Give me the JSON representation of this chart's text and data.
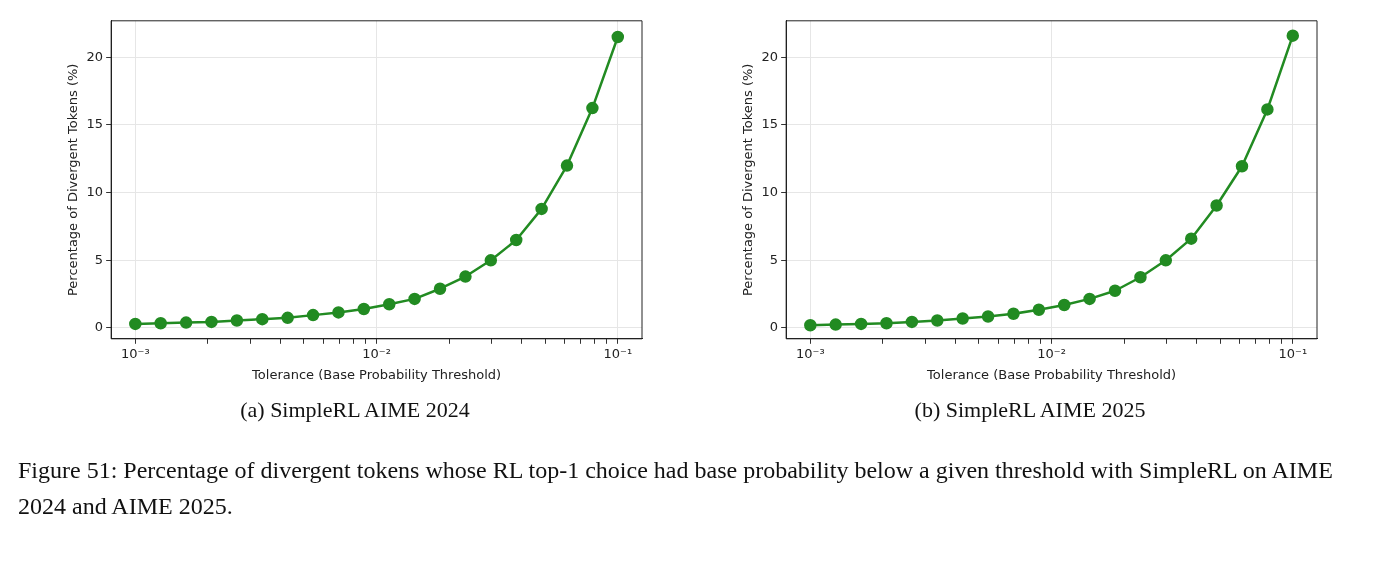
{
  "chart_data": [
    {
      "type": "line",
      "title": "(a) SimpleRL AIME 2024",
      "xlabel": "Tolerance (Base Probability Threshold)",
      "ylabel": "Percentage of Divergent Tokens (%)",
      "log": "x",
      "grid": true,
      "marker": "circle",
      "line_style": "solid",
      "legend": false,
      "x": [
        0.001,
        0.001274,
        0.001624,
        0.002069,
        0.002637,
        0.00336,
        0.004281,
        0.005456,
        0.006952,
        0.008859,
        0.01129,
        0.01438,
        0.01833,
        0.02336,
        0.02976,
        0.03793,
        0.04833,
        0.06158,
        0.07848,
        0.1
      ],
      "series": [
        {
          "color": "#228b22",
          "values": [
            0.3,
            0.35,
            0.4,
            0.45,
            0.55,
            0.65,
            0.75,
            0.95,
            1.15,
            1.4,
            1.75,
            2.15,
            2.9,
            3.8,
            5.0,
            6.5,
            8.8,
            12.0,
            16.25,
            21.5
          ]
        }
      ],
      "xlim": [
        0.000794,
        0.126
      ],
      "ylim": [
        -0.8,
        22.7
      ],
      "yticks": [
        0,
        5,
        10,
        15,
        20
      ],
      "xticks": [
        {
          "value": 0.001,
          "label": "10⁻³"
        },
        {
          "value": 0.002,
          "label": null
        },
        {
          "value": 0.003,
          "label": null
        },
        {
          "value": 0.004,
          "label": null
        },
        {
          "value": 0.005,
          "label": null
        },
        {
          "value": 0.006,
          "label": null
        },
        {
          "value": 0.007,
          "label": null
        },
        {
          "value": 0.008,
          "label": null
        },
        {
          "value": 0.009,
          "label": null
        },
        {
          "value": 0.01,
          "label": "10⁻²"
        },
        {
          "value": 0.02,
          "label": null
        },
        {
          "value": 0.03,
          "label": null
        },
        {
          "value": 0.04,
          "label": null
        },
        {
          "value": 0.05,
          "label": null
        },
        {
          "value": 0.06,
          "label": null
        },
        {
          "value": 0.07,
          "label": null
        },
        {
          "value": 0.08,
          "label": null
        },
        {
          "value": 0.09,
          "label": null
        },
        {
          "value": 0.1,
          "label": "10⁻¹"
        }
      ],
      "annotations": [
        "Figure 51: Percentage of divergent tokens whose RL top-1 choice had base probability below a given threshold with SimpleRL on AIME 2024 and AIME 2025."
      ]
    },
    {
      "type": "line",
      "title": "(b) SimpleRL AIME 2025",
      "xlabel": "Tolerance (Base Probability Threshold)",
      "ylabel": "Percentage of Divergent Tokens (%)",
      "log": "x",
      "grid": true,
      "marker": "circle",
      "line_style": "solid",
      "legend": false,
      "x": [
        0.001,
        0.001274,
        0.001624,
        0.002069,
        0.002637,
        0.00336,
        0.004281,
        0.005456,
        0.006952,
        0.008859,
        0.01129,
        0.01438,
        0.01833,
        0.02336,
        0.02976,
        0.03793,
        0.04833,
        0.06158,
        0.07848,
        0.1
      ],
      "series": [
        {
          "color": "#228b22",
          "values": [
            0.2,
            0.25,
            0.3,
            0.35,
            0.45,
            0.55,
            0.7,
            0.85,
            1.05,
            1.35,
            1.7,
            2.15,
            2.75,
            3.75,
            5.0,
            6.6,
            9.05,
            11.95,
            16.15,
            21.6
          ]
        }
      ],
      "xlim": [
        0.000794,
        0.126
      ],
      "ylim": [
        -0.8,
        22.7
      ],
      "yticks": [
        0,
        5,
        10,
        15,
        20
      ],
      "xticks": [
        {
          "value": 0.001,
          "label": "10⁻³"
        },
        {
          "value": 0.002,
          "label": null
        },
        {
          "value": 0.003,
          "label": null
        },
        {
          "value": 0.004,
          "label": null
        },
        {
          "value": 0.005,
          "label": null
        },
        {
          "value": 0.006,
          "label": null
        },
        {
          "value": 0.007,
          "label": null
        },
        {
          "value": 0.008,
          "label": null
        },
        {
          "value": 0.009,
          "label": null
        },
        {
          "value": 0.01,
          "label": "10⁻²"
        },
        {
          "value": 0.02,
          "label": null
        },
        {
          "value": 0.03,
          "label": null
        },
        {
          "value": 0.04,
          "label": null
        },
        {
          "value": 0.05,
          "label": null
        },
        {
          "value": 0.06,
          "label": null
        },
        {
          "value": 0.07,
          "label": null
        },
        {
          "value": 0.08,
          "label": null
        },
        {
          "value": 0.09,
          "label": null
        },
        {
          "value": 0.1,
          "label": "10⁻¹"
        }
      ]
    }
  ]
}
